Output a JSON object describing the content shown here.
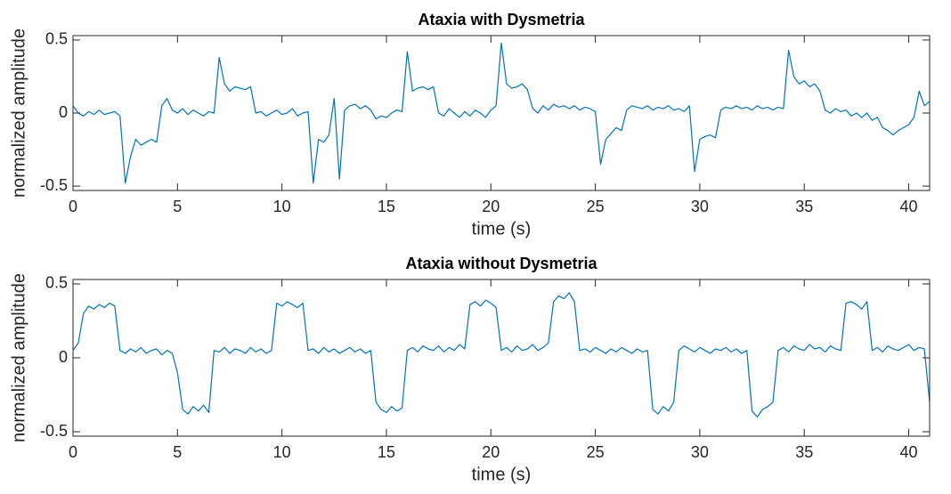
{
  "chart_data": [
    {
      "type": "line",
      "title": "Ataxia with Dysmetria",
      "xlabel": "time (s)",
      "ylabel": "normalized amplitude",
      "xlim": [
        0,
        41
      ],
      "ylim": [
        -0.53,
        0.53
      ],
      "xticks": [
        0,
        5,
        10,
        15,
        20,
        25,
        30,
        35,
        40
      ],
      "yticks": [
        -0.5,
        0,
        0.5
      ],
      "grid": false,
      "x": [
        0,
        0.25,
        0.5,
        0.75,
        1,
        1.25,
        1.5,
        1.75,
        2,
        2.25,
        2.5,
        2.75,
        3,
        3.25,
        3.5,
        3.75,
        4,
        4.25,
        4.5,
        4.75,
        5,
        5.25,
        5.5,
        5.75,
        6,
        6.25,
        6.5,
        6.75,
        7,
        7.25,
        7.5,
        7.75,
        8,
        8.25,
        8.5,
        8.75,
        9,
        9.25,
        9.5,
        9.75,
        10,
        10.25,
        10.5,
        10.75,
        11,
        11.25,
        11.5,
        11.75,
        12,
        12.25,
        12.5,
        12.75,
        13,
        13.25,
        13.5,
        13.75,
        14,
        14.25,
        14.5,
        14.75,
        15,
        15.25,
        15.5,
        15.75,
        16,
        16.25,
        16.5,
        16.75,
        17,
        17.25,
        17.5,
        17.75,
        18,
        18.25,
        18.5,
        18.75,
        19,
        19.25,
        19.5,
        19.75,
        20,
        20.25,
        20.5,
        20.75,
        21,
        21.25,
        21.5,
        21.75,
        22,
        22.25,
        22.5,
        22.75,
        23,
        23.25,
        23.5,
        23.75,
        24,
        24.25,
        24.5,
        24.75,
        25,
        25.25,
        25.5,
        25.75,
        26,
        26.25,
        26.5,
        26.75,
        27,
        27.25,
        27.5,
        27.75,
        28,
        28.25,
        28.5,
        28.75,
        29,
        29.25,
        29.5,
        29.75,
        30,
        30.25,
        30.5,
        30.75,
        31,
        31.25,
        31.5,
        31.75,
        32,
        32.25,
        32.5,
        32.75,
        33,
        33.25,
        33.5,
        33.75,
        34,
        34.25,
        34.5,
        34.75,
        35,
        35.25,
        35.5,
        35.75,
        36,
        36.25,
        36.5,
        36.75,
        37,
        37.25,
        37.5,
        37.75,
        38,
        38.25,
        38.5,
        38.75,
        39,
        39.25,
        39.5,
        39.75,
        40,
        40.25,
        40.5,
        40.75,
        41
      ],
      "series": [
        {
          "color": "#0072BD",
          "values": [
            0.05,
            0.0,
            -0.02,
            0.01,
            -0.01,
            0.02,
            -0.01,
            0.0,
            0.01,
            -0.02,
            -0.48,
            -0.3,
            -0.18,
            -0.22,
            -0.2,
            -0.18,
            -0.2,
            0.05,
            0.1,
            0.02,
            0.0,
            0.03,
            -0.01,
            0.02,
            0.0,
            -0.02,
            0.01,
            0.0,
            0.38,
            0.2,
            0.15,
            0.18,
            0.17,
            0.16,
            0.18,
            0.0,
            0.01,
            -0.02,
            0.0,
            0.02,
            -0.01,
            0.0,
            0.03,
            -0.02,
            0.0,
            0.01,
            -0.48,
            -0.18,
            -0.2,
            -0.15,
            0.1,
            -0.45,
            0.02,
            0.05,
            0.06,
            0.03,
            0.05,
            0.02,
            -0.04,
            -0.02,
            -0.03,
            0.0,
            0.02,
            0.01,
            0.42,
            0.15,
            0.17,
            0.18,
            0.16,
            0.18,
            0.0,
            -0.02,
            0.03,
            0.0,
            -0.03,
            0.01,
            -0.02,
            0.02,
            0.0,
            -0.03,
            0.02,
            0.05,
            0.48,
            0.2,
            0.17,
            0.18,
            0.2,
            0.16,
            0.03,
            0.0,
            0.05,
            0.02,
            0.06,
            0.04,
            0.05,
            0.03,
            0.05,
            0.02,
            0.04,
            0.03,
            0.01,
            -0.35,
            -0.18,
            -0.14,
            -0.1,
            -0.12,
            0.02,
            0.05,
            0.04,
            0.03,
            0.05,
            0.02,
            0.04,
            0.03,
            0.05,
            0.02,
            0.03,
            0.01,
            0.05,
            -0.4,
            -0.18,
            -0.16,
            -0.15,
            -0.17,
            0.02,
            0.04,
            0.03,
            0.05,
            0.03,
            0.04,
            0.02,
            0.05,
            0.03,
            0.04,
            0.02,
            0.04,
            0.03,
            0.43,
            0.25,
            0.2,
            0.22,
            0.18,
            0.2,
            0.15,
            0.02,
            0.0,
            0.03,
            0.01,
            0.02,
            -0.02,
            0.0,
            -0.03,
            0.0,
            -0.05,
            -0.03,
            -0.1,
            -0.12,
            -0.15,
            -0.12,
            -0.1,
            -0.08,
            -0.03,
            0.15,
            0.05,
            0.08
          ]
        }
      ]
    },
    {
      "type": "line",
      "title": "Ataxia without Dysmetria",
      "xlabel": "time (s)",
      "ylabel": "normalized amplitude",
      "xlim": [
        0,
        41
      ],
      "ylim": [
        -0.53,
        0.53
      ],
      "xticks": [
        0,
        5,
        10,
        15,
        20,
        25,
        30,
        35,
        40
      ],
      "yticks": [
        -0.5,
        0,
        0.5
      ],
      "grid": false,
      "x": [
        0,
        0.25,
        0.5,
        0.75,
        1,
        1.25,
        1.5,
        1.75,
        2,
        2.25,
        2.5,
        2.75,
        3,
        3.25,
        3.5,
        3.75,
        4,
        4.25,
        4.5,
        4.75,
        5,
        5.25,
        5.5,
        5.75,
        6,
        6.25,
        6.5,
        6.75,
        7,
        7.25,
        7.5,
        7.75,
        8,
        8.25,
        8.5,
        8.75,
        9,
        9.25,
        9.5,
        9.75,
        10,
        10.25,
        10.5,
        10.75,
        11,
        11.25,
        11.5,
        11.75,
        12,
        12.25,
        12.5,
        12.75,
        13,
        13.25,
        13.5,
        13.75,
        14,
        14.25,
        14.5,
        14.75,
        15,
        15.25,
        15.5,
        15.75,
        16,
        16.25,
        16.5,
        16.75,
        17,
        17.25,
        17.5,
        17.75,
        18,
        18.25,
        18.5,
        18.75,
        19,
        19.25,
        19.5,
        19.75,
        20,
        20.25,
        20.5,
        20.75,
        21,
        21.25,
        21.5,
        21.75,
        22,
        22.25,
        22.5,
        22.75,
        23,
        23.25,
        23.5,
        23.75,
        24,
        24.25,
        24.5,
        24.75,
        25,
        25.25,
        25.5,
        25.75,
        26,
        26.25,
        26.5,
        26.75,
        27,
        27.25,
        27.5,
        27.75,
        28,
        28.25,
        28.5,
        28.75,
        29,
        29.25,
        29.5,
        29.75,
        30,
        30.25,
        30.5,
        30.75,
        31,
        31.25,
        31.5,
        31.75,
        32,
        32.25,
        32.5,
        32.75,
        33,
        33.25,
        33.5,
        33.75,
        34,
        34.25,
        34.5,
        34.75,
        35,
        35.25,
        35.5,
        35.75,
        36,
        36.25,
        36.5,
        36.75,
        37,
        37.25,
        37.5,
        37.75,
        38,
        38.25,
        38.5,
        38.75,
        39,
        39.25,
        39.5,
        39.75,
        40,
        40.25,
        40.5,
        40.75,
        41
      ],
      "series": [
        {
          "color": "#0072BD",
          "values": [
            0.05,
            0.1,
            0.3,
            0.35,
            0.33,
            0.36,
            0.34,
            0.37,
            0.35,
            0.05,
            0.03,
            0.06,
            0.04,
            0.07,
            0.03,
            0.05,
            0.06,
            0.02,
            0.05,
            0.03,
            -0.1,
            -0.35,
            -0.38,
            -0.33,
            -0.36,
            -0.32,
            -0.37,
            0.05,
            0.04,
            0.07,
            0.03,
            0.06,
            0.05,
            0.03,
            0.07,
            0.04,
            0.06,
            0.03,
            0.05,
            0.37,
            0.35,
            0.38,
            0.36,
            0.34,
            0.37,
            0.05,
            0.06,
            0.03,
            0.07,
            0.04,
            0.06,
            0.03,
            0.05,
            0.07,
            0.04,
            0.06,
            0.03,
            0.05,
            -0.3,
            -0.35,
            -0.37,
            -0.33,
            -0.36,
            -0.34,
            0.05,
            0.07,
            0.04,
            0.08,
            0.06,
            0.05,
            0.08,
            0.04,
            0.07,
            0.05,
            0.09,
            0.06,
            0.36,
            0.38,
            0.35,
            0.39,
            0.37,
            0.34,
            0.05,
            0.07,
            0.04,
            0.08,
            0.05,
            0.06,
            0.09,
            0.05,
            0.07,
            0.1,
            0.38,
            0.42,
            0.4,
            0.44,
            0.38,
            0.05,
            0.06,
            0.04,
            0.07,
            0.05,
            0.03,
            0.06,
            0.04,
            0.07,
            0.05,
            0.03,
            0.06,
            0.04,
            0.05,
            -0.35,
            -0.38,
            -0.33,
            -0.36,
            -0.3,
            0.05,
            0.08,
            0.06,
            0.04,
            0.07,
            0.05,
            0.03,
            0.06,
            0.05,
            0.07,
            0.04,
            0.06,
            0.03,
            0.05,
            -0.36,
            -0.4,
            -0.35,
            -0.33,
            -0.3,
            0.05,
            0.07,
            0.04,
            0.08,
            0.06,
            0.05,
            0.09,
            0.06,
            0.07,
            0.04,
            0.08,
            0.06,
            0.05,
            0.37,
            0.38,
            0.36,
            0.33,
            0.38,
            0.05,
            0.07,
            0.04,
            0.08,
            0.06,
            0.05,
            0.07,
            0.09,
            0.05,
            0.07,
            0.06,
            -0.3
          ]
        }
      ]
    }
  ]
}
